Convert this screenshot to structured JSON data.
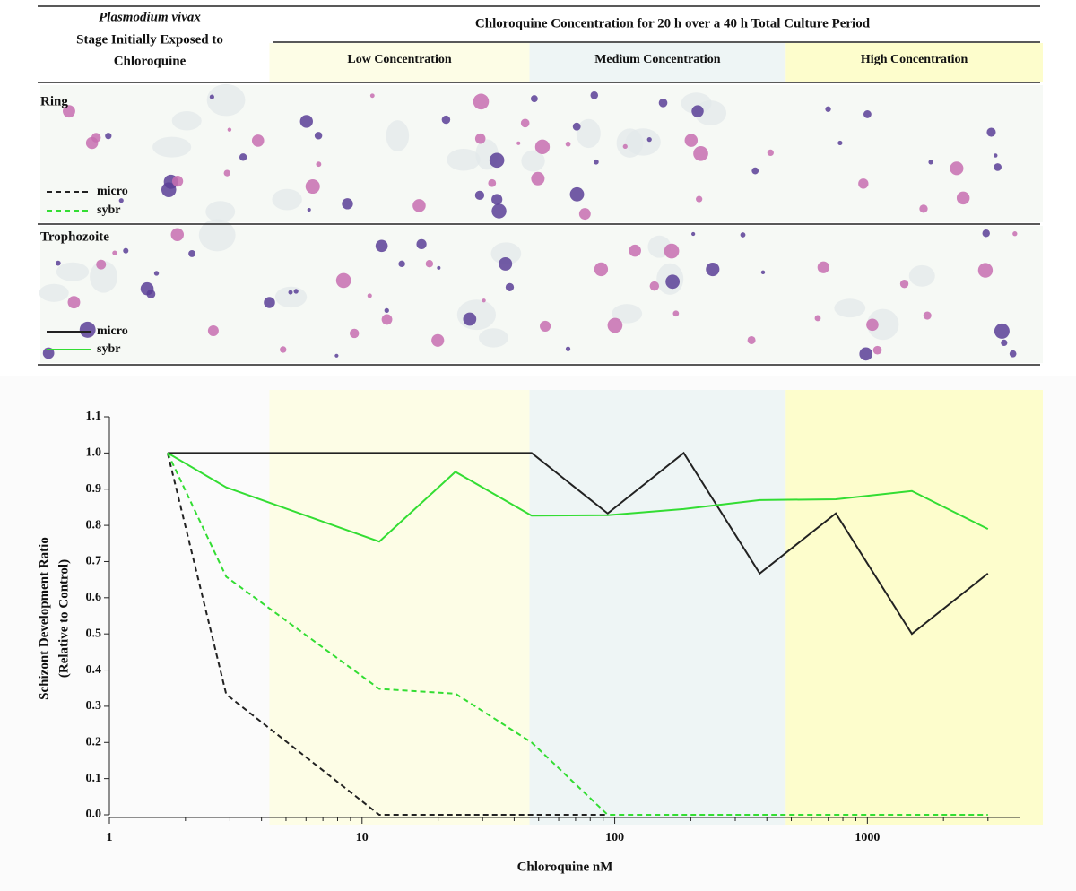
{
  "chart_data": {
    "type": "line",
    "title": "Chloroquine Concentration for 20 h over a 40 h Total Culture Period",
    "stage_header": {
      "species": "Plasmodium vivax",
      "lines": [
        "Stage Initially Exposed to",
        "Chloroquine"
      ]
    },
    "bands": [
      {
        "label": "Low Concentration",
        "from": 4.3,
        "to": 46,
        "color": "#fdfde6"
      },
      {
        "label": "Medium Concentration",
        "from": 46,
        "to": 475,
        "color": "#eef5f5"
      },
      {
        "label": "High Concentration",
        "from": 475,
        "to": 5000,
        "color": "#fdfdcc"
      }
    ],
    "x": [
      1.7,
      2.9,
      11.7,
      23.4,
      46.9,
      93.8,
      187.5,
      375,
      750,
      1500,
      3000
    ],
    "rows": [
      {
        "label": "Ring",
        "series": [
          {
            "name": "micro",
            "color": "#222222",
            "line_style": "dashed",
            "values": [
              1.0,
              0.333,
              0,
              0,
              0,
              0,
              null,
              null,
              null,
              null,
              null
            ]
          },
          {
            "name": "sybr",
            "color": "#33dd33",
            "line_style": "dashed",
            "values": [
              1.0,
              0.658,
              0.348,
              0.335,
              0.2,
              0,
              0,
              0,
              0,
              0,
              0
            ]
          }
        ]
      },
      {
        "label": "Trophozoite",
        "series": [
          {
            "name": "micro",
            "color": "#222222",
            "line_style": "solid",
            "values": [
              1.0,
              1.0,
              1.0,
              1.0,
              1.0,
              0.833,
              1.0,
              0.667,
              0.833,
              0.5,
              0.667
            ]
          },
          {
            "name": "sybr",
            "color": "#33dd33",
            "line_style": "solid",
            "values": [
              1.0,
              0.905,
              0.755,
              0.948,
              0.827,
              0.828,
              0.845,
              0.87,
              0.872,
              0.895,
              0.79
            ]
          }
        ]
      }
    ],
    "xlabel": "Chloroquine nM",
    "ylabel": [
      "Schizont Development Ratio",
      "(Relative to Control)"
    ],
    "xscale": "log",
    "xlim": [
      1,
      4000
    ],
    "xticks": [
      1,
      10,
      100,
      1000
    ],
    "ylim": [
      0,
      1.1
    ],
    "yticks": [
      {
        "value": 0,
        "label": "0.0"
      },
      0.1,
      0.2,
      0.3,
      0.4,
      0.5,
      0.6,
      0.7,
      0.8,
      0.9,
      {
        "value": 1,
        "label": "1.0"
      },
      1.1
    ]
  }
}
